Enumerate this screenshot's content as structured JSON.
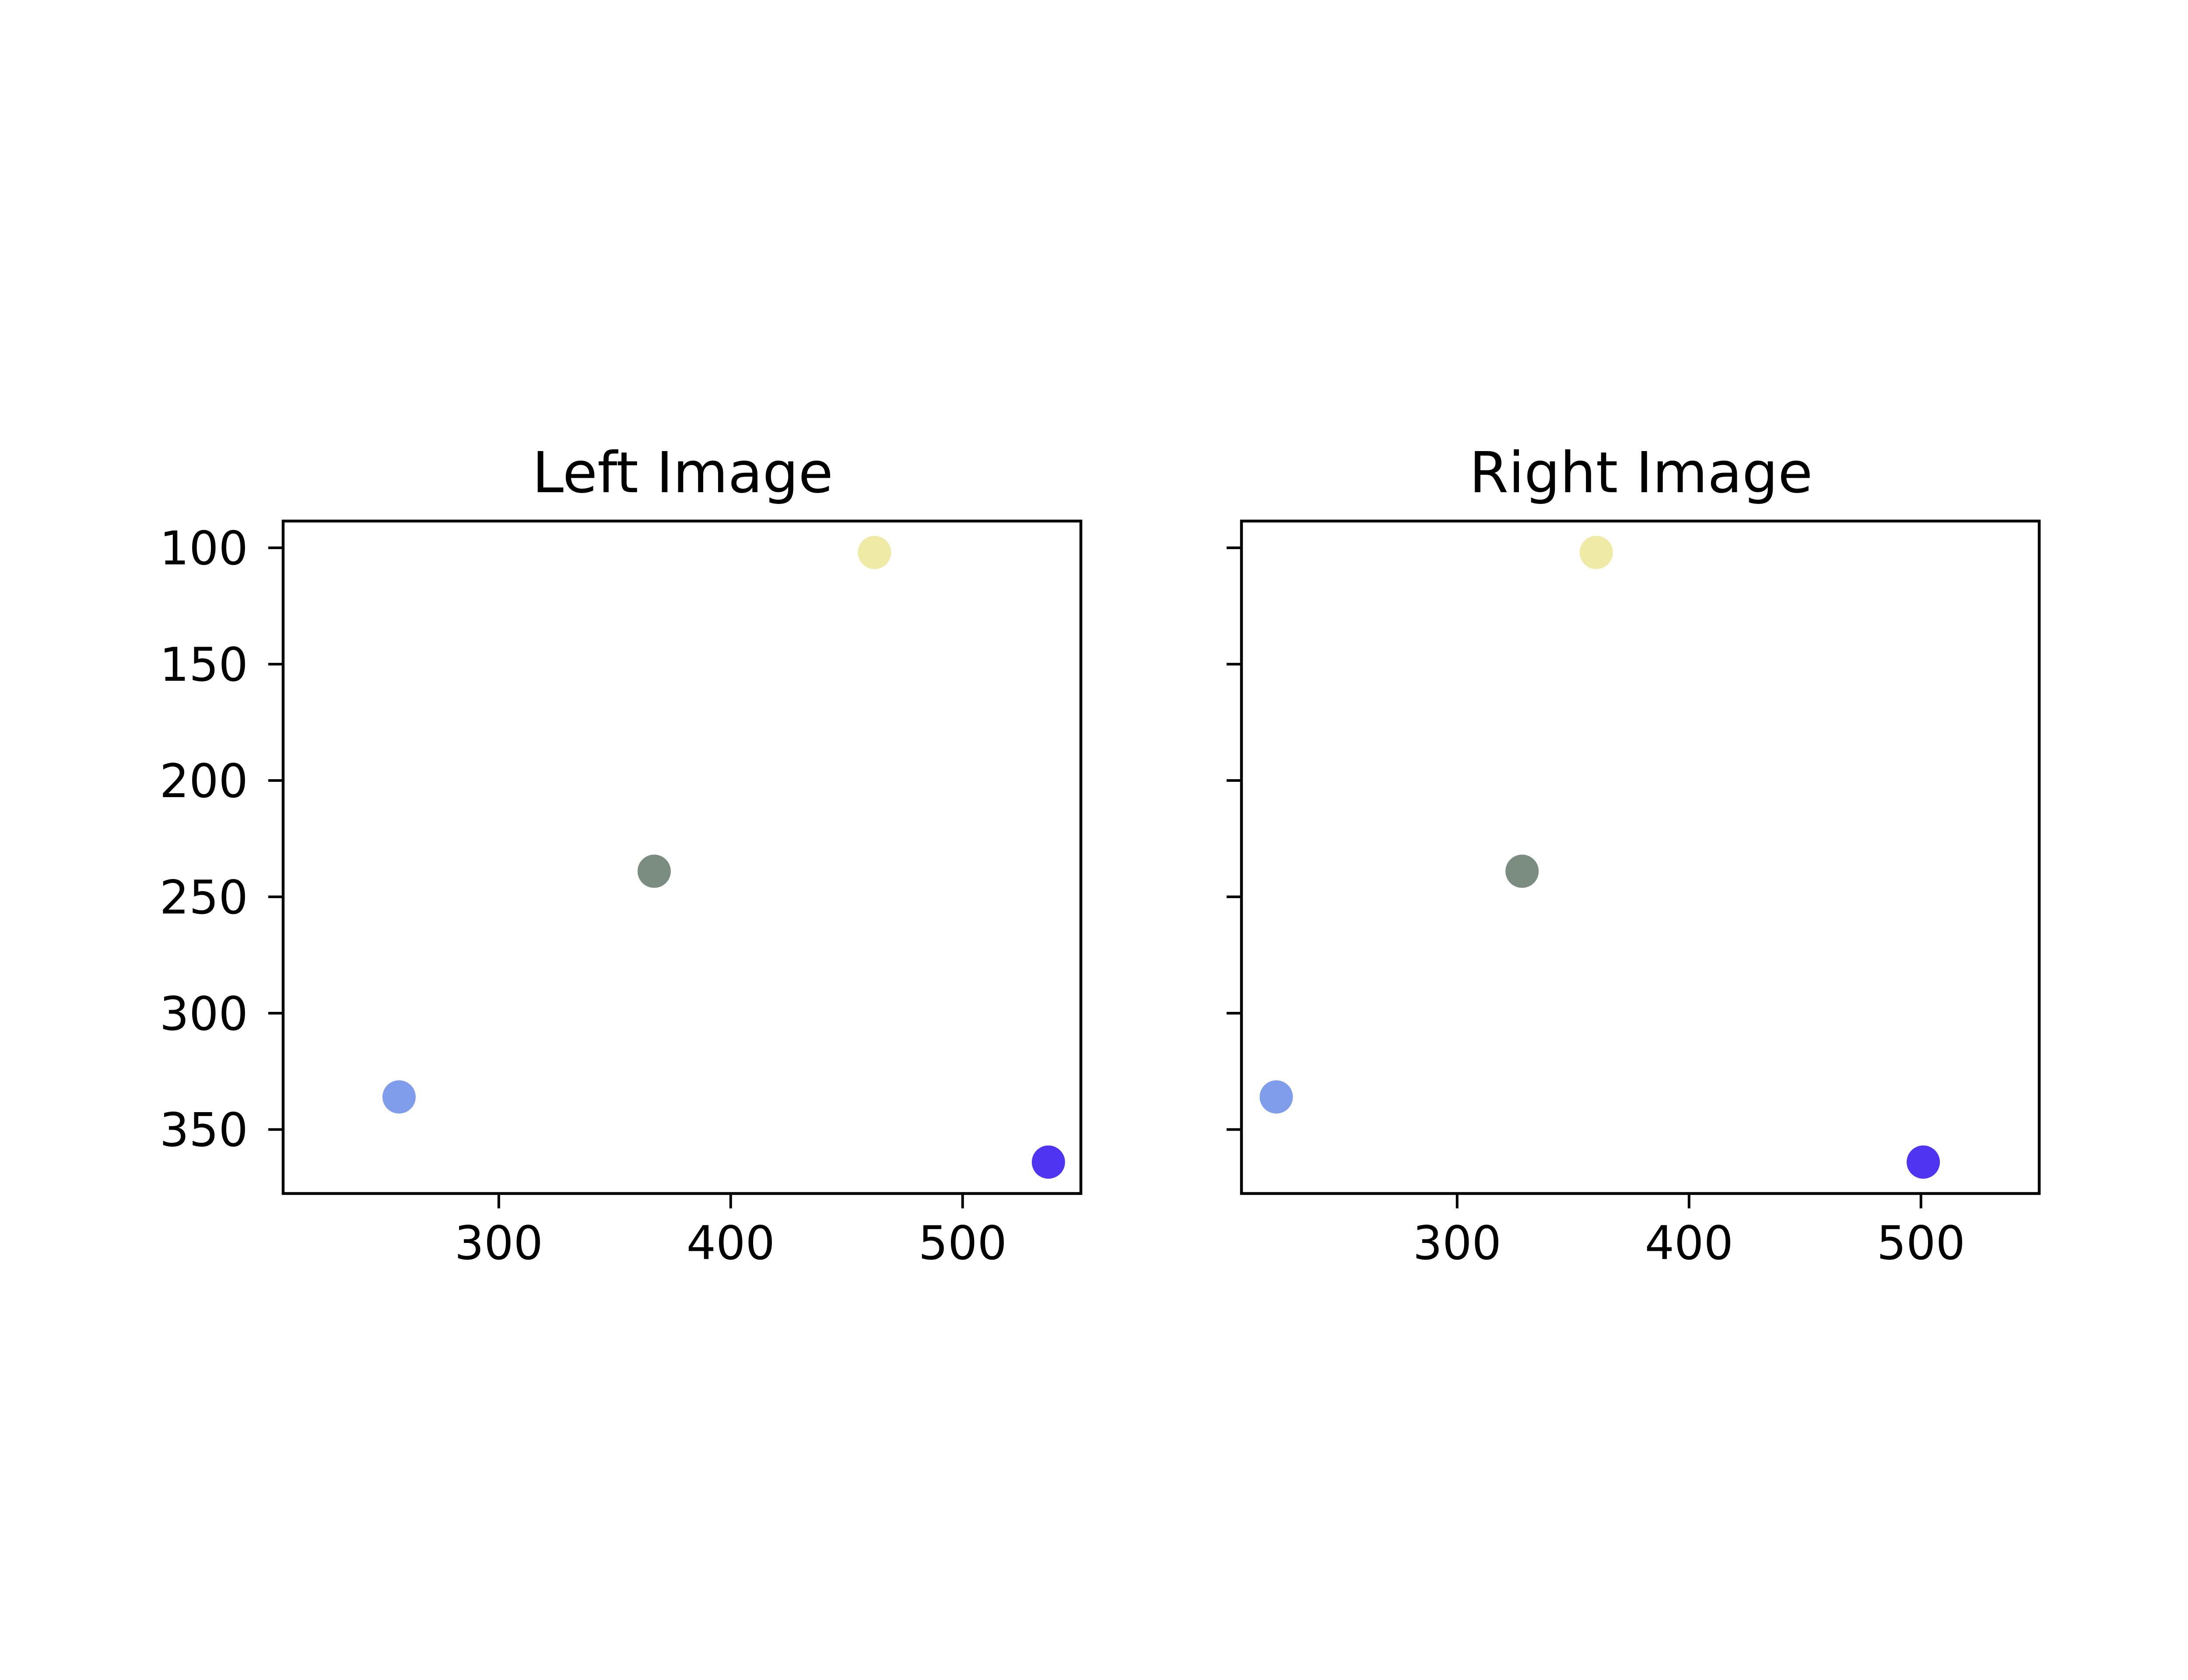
{
  "chart_data": [
    {
      "type": "scatter",
      "title": "Left Image",
      "xlabel": "",
      "ylabel": "",
      "xlim": [
        207,
        551
      ],
      "ylim": [
        377.5,
        88.5
      ],
      "y_inverted": true,
      "xticks": [
        300,
        400,
        500
      ],
      "yticks": [
        100,
        150,
        200,
        250,
        300,
        350
      ],
      "grid": false,
      "points": [
        {
          "x": 462,
          "y": 102,
          "color": "#efeaa6"
        },
        {
          "x": 367,
          "y": 239,
          "color": "#7b8c80"
        },
        {
          "x": 257,
          "y": 336,
          "color": "#7f9deb"
        },
        {
          "x": 537,
          "y": 364,
          "color": "#4f35f2"
        }
      ]
    },
    {
      "type": "scatter",
      "title": "Right Image",
      "xlabel": "",
      "ylabel": "",
      "xlim": [
        207,
        551
      ],
      "ylim": [
        377.5,
        88.5
      ],
      "y_inverted": true,
      "y_shared": true,
      "xticks": [
        300,
        400,
        500
      ],
      "yticks": [
        100,
        150,
        200,
        250,
        300,
        350
      ],
      "grid": false,
      "points": [
        {
          "x": 360,
          "y": 102,
          "color": "#efeaa6"
        },
        {
          "x": 328,
          "y": 239,
          "color": "#7b8c80"
        },
        {
          "x": 222,
          "y": 336,
          "color": "#7f9deb"
        },
        {
          "x": 501,
          "y": 364,
          "color": "#4f35f2"
        }
      ]
    }
  ]
}
